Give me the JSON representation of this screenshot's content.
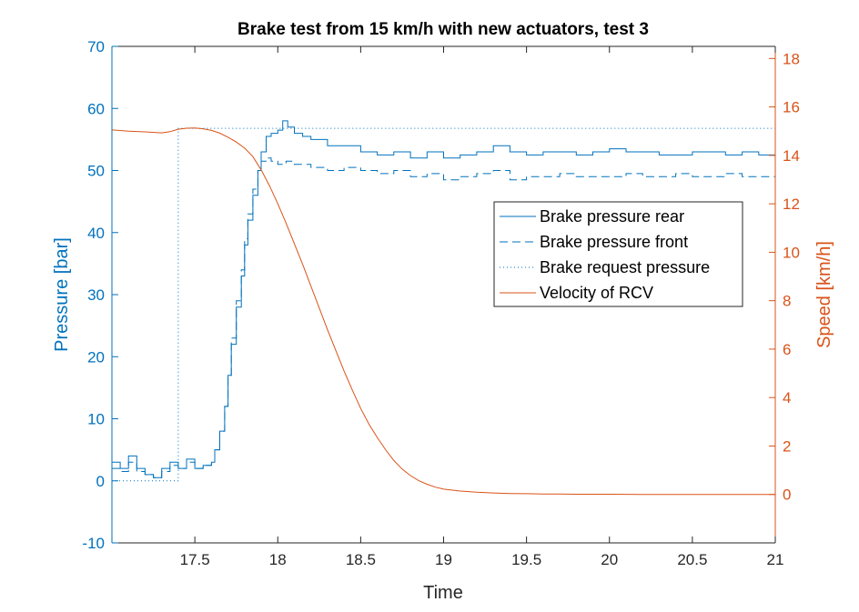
{
  "chart_data": {
    "type": "line",
    "title": "Brake test from 15 km/h with new actuators, test 3",
    "xlabel": "Time",
    "ylabel_left": "Pressure [bar]",
    "ylabel_right": "Speed [km/h]",
    "xlim": [
      17.0,
      21.0
    ],
    "ylim_left": [
      -10,
      70
    ],
    "ylim_right": [
      -2,
      18.5
    ],
    "xticks": [
      17.5,
      18,
      18.5,
      19,
      19.5,
      20,
      20.5,
      21
    ],
    "xtick_labels": [
      "17.5",
      "18",
      "18.5",
      "19",
      "19.5",
      "20",
      "20.5",
      "21"
    ],
    "yticks_left": [
      -10,
      0,
      10,
      20,
      30,
      40,
      50,
      60,
      70
    ],
    "ytick_labels_left": [
      "-10",
      "0",
      "10",
      "20",
      "30",
      "40",
      "50",
      "60",
      "70"
    ],
    "yticks_right": [
      0,
      2,
      4,
      6,
      8,
      10,
      12,
      14,
      16,
      18
    ],
    "ytick_labels_right": [
      "0",
      "2",
      "4",
      "6",
      "8",
      "10",
      "12",
      "14",
      "16",
      "18"
    ],
    "colors": {
      "pressure": "#0072BD",
      "velocity": "#D95319",
      "axis": "#262626"
    },
    "legend": {
      "location": "right",
      "entries": [
        "Brake pressure rear",
        "Brake pressure front",
        "Brake request pressure",
        "Velocity of RCV"
      ]
    },
    "series": [
      {
        "name": "Brake pressure rear",
        "axis": "left",
        "style": "solid",
        "x": [
          17.0,
          17.05,
          17.1,
          17.15,
          17.2,
          17.25,
          17.3,
          17.35,
          17.4,
          17.45,
          17.5,
          17.55,
          17.6,
          17.62,
          17.65,
          17.68,
          17.7,
          17.72,
          17.75,
          17.78,
          17.8,
          17.82,
          17.85,
          17.88,
          17.9,
          17.93,
          17.96,
          18.0,
          18.03,
          18.06,
          18.1,
          18.15,
          18.2,
          18.3,
          18.4,
          18.5,
          18.6,
          18.7,
          18.8,
          18.9,
          19.0,
          19.1,
          19.2,
          19.3,
          19.4,
          19.5,
          19.6,
          19.7,
          19.8,
          19.9,
          20.0,
          20.1,
          20.2,
          20.3,
          20.4,
          20.5,
          20.6,
          20.7,
          20.8,
          20.9,
          21.0
        ],
        "y": [
          3,
          2,
          4,
          2,
          1,
          0.5,
          2,
          3,
          2,
          3.5,
          2,
          2.5,
          3,
          5,
          8,
          12,
          17,
          22,
          28,
          33,
          38,
          42,
          46,
          50,
          53,
          55.5,
          56,
          56.5,
          58,
          57,
          56,
          55.5,
          55,
          54,
          54,
          53,
          52.5,
          53,
          52,
          53,
          52,
          52.5,
          53,
          54,
          53,
          52.5,
          53,
          53,
          52.5,
          53,
          53.5,
          53,
          53,
          52.5,
          52.5,
          53,
          53,
          52.5,
          53,
          52.5,
          53
        ]
      },
      {
        "name": "Brake pressure front",
        "axis": "left",
        "style": "dashed",
        "x": [
          17.0,
          17.05,
          17.1,
          17.15,
          17.2,
          17.25,
          17.3,
          17.35,
          17.4,
          17.45,
          17.5,
          17.55,
          17.6,
          17.62,
          17.65,
          17.68,
          17.7,
          17.72,
          17.75,
          17.78,
          17.8,
          17.82,
          17.85,
          17.88,
          17.9,
          17.93,
          17.96,
          18.0,
          18.05,
          18.1,
          18.2,
          18.3,
          18.4,
          18.5,
          18.6,
          18.7,
          18.8,
          18.9,
          19.0,
          19.1,
          19.2,
          19.3,
          19.4,
          19.5,
          19.6,
          19.7,
          19.8,
          19.9,
          20.0,
          20.1,
          20.2,
          20.3,
          20.4,
          20.5,
          20.6,
          20.7,
          20.8,
          20.9,
          21.0
        ],
        "y": [
          2,
          1.5,
          3,
          1.5,
          1,
          0.5,
          1.5,
          2.5,
          2,
          3,
          2,
          2.5,
          3,
          5,
          8,
          12,
          17,
          23,
          29,
          34,
          39,
          43,
          47,
          50,
          51.5,
          52,
          51.5,
          51,
          51.5,
          51,
          50.5,
          50,
          50.5,
          50,
          49.5,
          50,
          49,
          49.5,
          48.5,
          49,
          49.5,
          50,
          48.5,
          49,
          49,
          49.5,
          49,
          49,
          49,
          49.5,
          49,
          49,
          49.5,
          49,
          49,
          49.5,
          49,
          49,
          49.5
        ]
      },
      {
        "name": "Brake request pressure",
        "axis": "left",
        "style": "dotted",
        "x": [
          17.0,
          17.4,
          17.4,
          21.0
        ],
        "y": [
          0,
          0,
          56.8,
          56.8
        ]
      },
      {
        "name": "Velocity of RCV",
        "axis": "right",
        "style": "solid",
        "x": [
          17.0,
          17.1,
          17.2,
          17.3,
          17.35,
          17.4,
          17.45,
          17.5,
          17.55,
          17.6,
          17.65,
          17.7,
          17.75,
          17.8,
          17.85,
          17.9,
          17.95,
          18.0,
          18.05,
          18.1,
          18.15,
          18.2,
          18.25,
          18.3,
          18.35,
          18.4,
          18.45,
          18.5,
          18.55,
          18.6,
          18.65,
          18.7,
          18.75,
          18.8,
          18.85,
          18.9,
          18.95,
          19.0,
          19.1,
          19.2,
          19.3,
          19.4,
          19.5,
          19.6,
          19.7,
          19.8,
          19.9,
          20.0,
          20.2,
          20.4,
          20.6,
          20.8,
          21.0
        ],
        "y": [
          15.05,
          15.0,
          14.97,
          14.93,
          14.98,
          15.08,
          15.12,
          15.13,
          15.1,
          15.03,
          14.92,
          14.75,
          14.55,
          14.3,
          13.95,
          13.4,
          12.75,
          12.0,
          11.2,
          10.35,
          9.5,
          8.6,
          7.7,
          6.8,
          5.95,
          5.1,
          4.3,
          3.55,
          2.9,
          2.35,
          1.85,
          1.4,
          1.05,
          0.78,
          0.57,
          0.42,
          0.3,
          0.22,
          0.14,
          0.09,
          0.06,
          0.04,
          0.03,
          0.02,
          0.02,
          0.01,
          0.01,
          0.01,
          0.0,
          0.0,
          0.0,
          0.0,
          0.0
        ]
      }
    ]
  }
}
